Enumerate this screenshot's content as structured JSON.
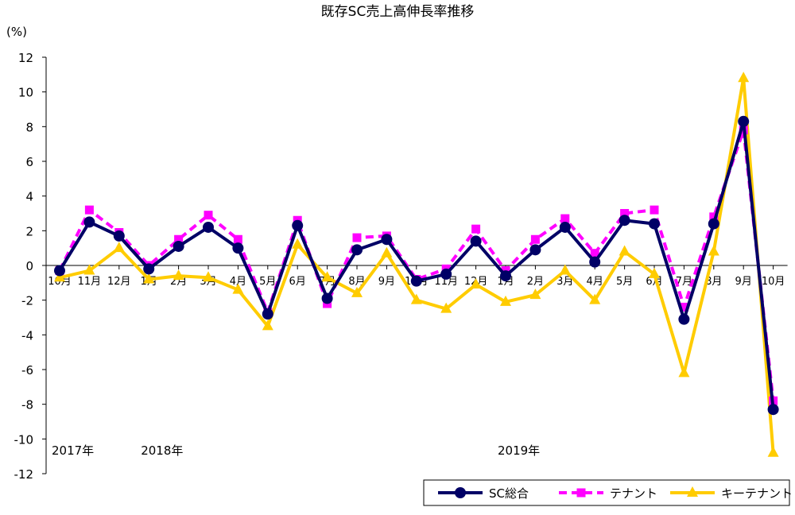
{
  "chart_data": {
    "type": "line",
    "title": "既存SC売上高伸長率推移",
    "ylabel": "(%)",
    "ylim": [
      -12,
      12
    ],
    "yticks": [
      12,
      10,
      8,
      6,
      4,
      2,
      0,
      -2,
      -4,
      -6,
      -8,
      -10,
      -12
    ],
    "categories": [
      "10月",
      "11月",
      "12月",
      "1月",
      "2月",
      "3月",
      "4月",
      "5月",
      "6月",
      "7月",
      "8月",
      "9月",
      "10月",
      "11月",
      "12月",
      "1月",
      "2月",
      "3月",
      "4月",
      "5月",
      "6月",
      "7月",
      "8月",
      "9月",
      "10月"
    ],
    "year_labels": [
      {
        "label": "2017年",
        "index": 0
      },
      {
        "label": "2018年",
        "index": 3
      },
      {
        "label": "2019年",
        "index": 15
      }
    ],
    "grid": false,
    "legend_position": "bottom-right",
    "series": [
      {
        "name": "SC総合",
        "color": "#000066",
        "values": [
          -0.3,
          2.5,
          1.7,
          -0.2,
          1.1,
          2.2,
          1.0,
          -2.8,
          2.3,
          -1.9,
          0.9,
          1.5,
          -0.9,
          -0.5,
          1.4,
          -0.6,
          0.9,
          2.2,
          0.2,
          2.6,
          2.4,
          -3.1,
          2.4,
          8.3,
          -8.3
        ]
      },
      {
        "name": "テナント",
        "color": "#ff00ff",
        "values": [
          -0.3,
          3.2,
          1.9,
          0.0,
          1.5,
          2.9,
          1.5,
          -2.7,
          2.6,
          -2.2,
          1.6,
          1.7,
          -0.8,
          -0.2,
          2.1,
          -0.3,
          1.5,
          2.7,
          0.7,
          3.0,
          3.2,
          -2.4,
          2.8,
          7.8,
          -7.8
        ]
      },
      {
        "name": "キーテナント",
        "color": "#ffcc00",
        "values": [
          -0.7,
          -0.3,
          1.0,
          -0.8,
          -0.6,
          -0.7,
          -1.4,
          -3.5,
          1.2,
          -0.7,
          -1.6,
          0.7,
          -2.0,
          -2.5,
          -1.1,
          -2.1,
          -1.7,
          -0.3,
          -2.0,
          0.8,
          -0.5,
          -6.2,
          0.8,
          10.8,
          -10.8
        ]
      }
    ]
  }
}
